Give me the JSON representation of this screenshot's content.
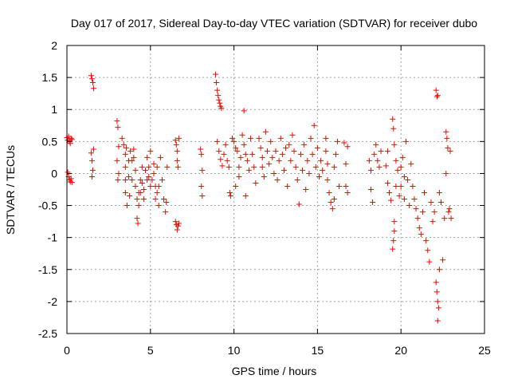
{
  "chart_data": {
    "type": "scatter",
    "title": "Day 017 of 2017, Sidereal Day-to-day VTEC variation (SDTVAR) for receiver dubo",
    "xlabel": "GPS time / hours",
    "ylabel": "SDTVAR / TECUs",
    "xlim": [
      0,
      25
    ],
    "ylim": [
      -2.5,
      2
    ],
    "x_ticks": [
      0,
      5,
      10,
      15,
      20,
      25
    ],
    "y_ticks": [
      -2.5,
      -2,
      -1.5,
      -1,
      -0.5,
      0,
      0.5,
      1,
      1.5,
      2
    ],
    "x_tick_labels": [
      "0",
      "5",
      "10",
      "15",
      "20",
      "25"
    ],
    "y_tick_labels": [
      "-2.5",
      "-2",
      "-1.5",
      "-1",
      "-0.5",
      "0",
      "0.5",
      "1",
      "1.5",
      "2"
    ],
    "grid": true,
    "marker": "+",
    "color": "#ff0000",
    "series": [
      {
        "name": "SDTVAR",
        "points": [
          [
            0.0,
            0.56
          ],
          [
            0.05,
            0.52
          ],
          [
            0.1,
            0.58
          ],
          [
            0.15,
            0.5
          ],
          [
            0.2,
            0.47
          ],
          [
            0.25,
            0.55
          ],
          [
            0.3,
            0.53
          ],
          [
            0.05,
            0.02
          ],
          [
            0.1,
            -0.05
          ],
          [
            0.15,
            -0.1
          ],
          [
            0.2,
            -0.13
          ],
          [
            0.25,
            -0.08
          ],
          [
            0.3,
            -0.14
          ],
          [
            1.45,
            1.53
          ],
          [
            1.5,
            1.48
          ],
          [
            1.55,
            1.42
          ],
          [
            1.6,
            1.33
          ],
          [
            1.45,
            0.32
          ],
          [
            1.5,
            0.2
          ],
          [
            1.55,
            0.05
          ],
          [
            1.6,
            0.38
          ],
          [
            1.5,
            -0.05
          ],
          [
            3.0,
            0.82
          ],
          [
            3.05,
            0.72
          ],
          [
            3.1,
            0.42
          ],
          [
            3.0,
            0.2
          ],
          [
            3.1,
            0.0
          ],
          [
            3.05,
            -0.1
          ],
          [
            3.3,
            0.55
          ],
          [
            3.4,
            0.45
          ],
          [
            3.5,
            0.3
          ],
          [
            3.5,
            0.1
          ],
          [
            3.5,
            -0.1
          ],
          [
            3.5,
            -0.3
          ],
          [
            3.6,
            -0.5
          ],
          [
            3.55,
            0.4
          ],
          [
            3.7,
            0.2
          ],
          [
            3.7,
            -0.05
          ],
          [
            3.75,
            -0.35
          ],
          [
            3.8,
            0.35
          ],
          [
            3.9,
            0.2
          ],
          [
            3.9,
            -0.1
          ],
          [
            4.0,
            0.38
          ],
          [
            4.0,
            0.25
          ],
          [
            4.1,
            0.05
          ],
          [
            4.1,
            -0.2
          ],
          [
            4.2,
            -0.4
          ],
          [
            4.2,
            -0.7
          ],
          [
            4.25,
            -0.78
          ],
          [
            4.3,
            -0.5
          ],
          [
            4.3,
            -0.3
          ],
          [
            4.4,
            -0.1
          ],
          [
            4.4,
            -0.3
          ],
          [
            4.5,
            0.1
          ],
          [
            4.5,
            -0.15
          ],
          [
            4.6,
            -0.25
          ],
          [
            4.6,
            -0.4
          ],
          [
            4.7,
            0.05
          ],
          [
            4.8,
            -0.1
          ],
          [
            4.8,
            0.25
          ],
          [
            4.9,
            0.1
          ],
          [
            4.9,
            -0.05
          ],
          [
            5.0,
            -0.2
          ],
          [
            5.0,
            0.35
          ],
          [
            5.1,
            -0.1
          ],
          [
            5.2,
            0.0
          ],
          [
            5.2,
            0.15
          ],
          [
            5.3,
            -0.2
          ],
          [
            5.3,
            -0.4
          ],
          [
            5.4,
            0.1
          ],
          [
            5.4,
            -0.3
          ],
          [
            5.5,
            -0.2
          ],
          [
            5.5,
            -0.5
          ],
          [
            5.6,
            0.25
          ],
          [
            5.7,
            -0.1
          ],
          [
            5.8,
            -0.4
          ],
          [
            5.9,
            -0.6
          ],
          [
            5.95,
            -0.45
          ],
          [
            6.0,
            0.1
          ],
          [
            6.5,
            0.52
          ],
          [
            6.55,
            0.45
          ],
          [
            6.6,
            0.35
          ],
          [
            6.6,
            0.2
          ],
          [
            6.65,
            0.1
          ],
          [
            6.7,
            0.55
          ],
          [
            6.5,
            -0.75
          ],
          [
            6.55,
            -0.8
          ],
          [
            6.6,
            -0.88
          ],
          [
            6.65,
            -0.82
          ],
          [
            6.7,
            -0.78
          ],
          [
            8.0,
            0.38
          ],
          [
            8.05,
            0.3
          ],
          [
            8.1,
            0.05
          ],
          [
            8.05,
            -0.2
          ],
          [
            8.1,
            -0.35
          ],
          [
            8.9,
            1.55
          ],
          [
            8.95,
            1.42
          ],
          [
            9.0,
            1.3
          ],
          [
            9.05,
            1.22
          ],
          [
            9.1,
            1.15
          ],
          [
            9.15,
            1.1
          ],
          [
            9.2,
            1.05
          ],
          [
            9.25,
            1.02
          ],
          [
            9.0,
            0.5
          ],
          [
            9.1,
            0.35
          ],
          [
            9.2,
            0.22
          ],
          [
            9.3,
            0.12
          ],
          [
            9.4,
            0.3
          ],
          [
            9.5,
            0.45
          ],
          [
            9.6,
            0.2
          ],
          [
            9.7,
            0.1
          ],
          [
            9.75,
            -0.3
          ],
          [
            9.8,
            -0.35
          ],
          [
            9.9,
            0.55
          ],
          [
            10.0,
            0.5
          ],
          [
            10.1,
            0.4
          ],
          [
            10.1,
            -0.2
          ],
          [
            10.2,
            0.35
          ],
          [
            10.3,
            0.1
          ],
          [
            10.3,
            -0.05
          ],
          [
            10.4,
            0.25
          ],
          [
            10.5,
            0.6
          ],
          [
            10.6,
            0.98
          ],
          [
            10.6,
            0.45
          ],
          [
            10.7,
            0.3
          ],
          [
            10.7,
            -0.35
          ],
          [
            10.8,
            0.2
          ],
          [
            10.9,
            0.05
          ],
          [
            11.0,
            0.55
          ],
          [
            11.1,
            0.3
          ],
          [
            11.2,
            0.1
          ],
          [
            11.3,
            -0.15
          ],
          [
            11.5,
            0.55
          ],
          [
            11.6,
            0.4
          ],
          [
            11.7,
            0.25
          ],
          [
            11.7,
            0.1
          ],
          [
            11.8,
            -0.05
          ],
          [
            11.9,
            0.65
          ],
          [
            12.0,
            0.35
          ],
          [
            12.1,
            0.15
          ],
          [
            12.2,
            0.5
          ],
          [
            12.3,
            0.25
          ],
          [
            12.4,
            0.0
          ],
          [
            12.5,
            0.35
          ],
          [
            12.6,
            -0.1
          ],
          [
            12.7,
            0.2
          ],
          [
            12.8,
            0.55
          ],
          [
            12.9,
            0.3
          ],
          [
            13.0,
            0.05
          ],
          [
            13.1,
            0.4
          ],
          [
            13.2,
            -0.2
          ],
          [
            13.3,
            0.45
          ],
          [
            13.4,
            0.2
          ],
          [
            13.5,
            0.6
          ],
          [
            13.6,
            0.35
          ],
          [
            13.7,
            0.1
          ],
          [
            13.8,
            -0.1
          ],
          [
            13.9,
            -0.48
          ],
          [
            14.0,
            0.3
          ],
          [
            14.1,
            0.05
          ],
          [
            14.2,
            0.45
          ],
          [
            14.3,
            -0.25
          ],
          [
            14.4,
            0.2
          ],
          [
            14.5,
            0.0
          ],
          [
            14.6,
            0.55
          ],
          [
            14.7,
            0.3
          ],
          [
            14.8,
            0.75
          ],
          [
            14.9,
            0.1
          ],
          [
            15.0,
            0.4
          ],
          [
            15.1,
            -0.05
          ],
          [
            15.2,
            0.2
          ],
          [
            15.3,
            0.05
          ],
          [
            15.5,
            0.55
          ],
          [
            15.5,
            0.35
          ],
          [
            15.6,
            0.15
          ],
          [
            15.6,
            -0.1
          ],
          [
            15.7,
            -0.3
          ],
          [
            15.8,
            -0.45
          ],
          [
            15.9,
            -0.55
          ],
          [
            16.0,
            -0.4
          ],
          [
            16.0,
            0.1
          ],
          [
            16.1,
            0.3
          ],
          [
            16.2,
            0.5
          ],
          [
            16.3,
            -0.2
          ],
          [
            16.6,
            0.48
          ],
          [
            16.7,
            0.15
          ],
          [
            16.7,
            -0.2
          ],
          [
            16.8,
            -0.3
          ],
          [
            16.8,
            0.42
          ],
          [
            18.1,
            0.2
          ],
          [
            18.2,
            0.05
          ],
          [
            18.2,
            -0.25
          ],
          [
            18.3,
            -0.45
          ],
          [
            18.4,
            0.3
          ],
          [
            18.5,
            0.45
          ],
          [
            18.6,
            0.2
          ],
          [
            18.7,
            0.1
          ],
          [
            18.8,
            0.35
          ],
          [
            19.1,
            0.12
          ],
          [
            19.2,
            0.35
          ],
          [
            19.2,
            -0.15
          ],
          [
            19.3,
            -0.3
          ],
          [
            19.4,
            -0.42
          ],
          [
            19.5,
            0.85
          ],
          [
            19.55,
            0.7
          ],
          [
            19.6,
            0.45
          ],
          [
            19.6,
            -0.9
          ],
          [
            19.55,
            -1.05
          ],
          [
            19.5,
            -1.18
          ],
          [
            19.6,
            -0.75
          ],
          [
            19.7,
            0.2
          ],
          [
            19.7,
            -0.2
          ],
          [
            19.8,
            0.05
          ],
          [
            19.9,
            -0.35
          ],
          [
            20.0,
            0.1
          ],
          [
            20.0,
            -0.2
          ],
          [
            20.1,
            0.25
          ],
          [
            20.2,
            -0.05
          ],
          [
            20.2,
            -0.4
          ],
          [
            20.3,
            0.5
          ],
          [
            20.4,
            -0.1
          ],
          [
            20.5,
            -0.5
          ],
          [
            20.6,
            0.15
          ],
          [
            20.7,
            -0.2
          ],
          [
            20.8,
            -0.4
          ],
          [
            20.9,
            -0.55
          ],
          [
            21.0,
            -0.7
          ],
          [
            21.1,
            -0.85
          ],
          [
            21.2,
            -0.95
          ],
          [
            21.3,
            -0.6
          ],
          [
            21.4,
            -0.3
          ],
          [
            21.5,
            -1.05
          ],
          [
            21.6,
            -1.2
          ],
          [
            21.7,
            -1.38
          ],
          [
            21.8,
            -0.45
          ],
          [
            21.9,
            -0.75
          ],
          [
            22.0,
            -0.6
          ],
          [
            22.1,
            1.3
          ],
          [
            22.15,
            1.2
          ],
          [
            22.2,
            1.22
          ],
          [
            22.1,
            -1.7
          ],
          [
            22.15,
            -1.85
          ],
          [
            22.2,
            -2.0
          ],
          [
            22.2,
            -2.3
          ],
          [
            22.25,
            -2.1
          ],
          [
            22.3,
            -1.5
          ],
          [
            22.3,
            -0.3
          ],
          [
            22.4,
            -0.45
          ],
          [
            22.5,
            -1.35
          ],
          [
            22.6,
            -0.7
          ],
          [
            22.7,
            0.0
          ],
          [
            22.7,
            0.65
          ],
          [
            22.75,
            0.55
          ],
          [
            22.8,
            0.4
          ],
          [
            22.85,
            -0.6
          ],
          [
            22.9,
            -0.55
          ],
          [
            22.95,
            0.35
          ],
          [
            23.0,
            -0.7
          ]
        ]
      }
    ]
  }
}
